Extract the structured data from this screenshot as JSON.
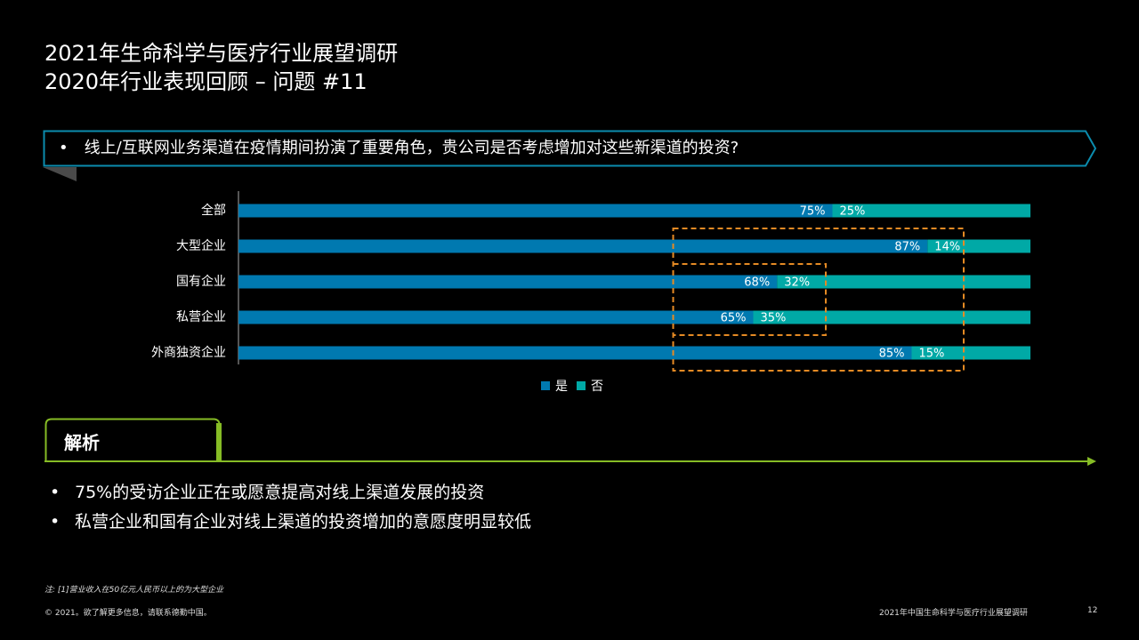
{
  "header": {
    "title_line1": "2021年生命科学与医疗行业展望调研",
    "title_line2": "2020年行业表现回顾 – 问题 #11"
  },
  "question": {
    "bullet": "•",
    "text": "线上/互联网业务渠道在疫情期间扮演了重要角色，贵公司是否考虑增加对这些新渠道的投资?"
  },
  "chart_data": {
    "type": "bar",
    "orientation": "horizontal",
    "stacked": true,
    "categories": [
      "全部",
      "大型企业",
      "国有企业",
      "私营企业",
      "外商独资企业"
    ],
    "series": [
      {
        "name": "是",
        "values": [
          75,
          87,
          68,
          65,
          85
        ],
        "labels": [
          "75%",
          "87%",
          "68%",
          "65%",
          "85%"
        ],
        "color": "#0079B0"
      },
      {
        "name": "否",
        "values": [
          25,
          14,
          32,
          35,
          15
        ],
        "labels": [
          "25%",
          "14%",
          "32%",
          "35%",
          "15%"
        ],
        "color": "#00A9A6"
      }
    ],
    "xlim": [
      0,
      100
    ],
    "grid": false,
    "legend": "bottom",
    "highlight_boxes": [
      {
        "categories": [
          "国有企业",
          "私营企业"
        ],
        "color": "#E58A24"
      },
      {
        "categories": [
          "大型企业",
          "国有企业",
          "私营企业",
          "外商独资企业"
        ],
        "color": "#E58A24"
      }
    ]
  },
  "analysis": {
    "label": "解析",
    "bullet": "•",
    "points": [
      "75%的受访企业正在或愿意提高对线上渠道发展的投资",
      "私营企业和国有企业对线上渠道的投资增加的意愿度明显较低"
    ]
  },
  "footer": {
    "note": "注: [1]营业收入在50亿元人民币以上的为大型企业",
    "copyright": "© 2021。欲了解更多信息，请联系德勤中国。",
    "report": "2021年中国生命科学与医疗行业展望调研",
    "page": "12"
  },
  "colors": {
    "accent_teal": "#0B8CAE",
    "accent_green": "#86BC25",
    "highlight_orange": "#E58A24"
  }
}
